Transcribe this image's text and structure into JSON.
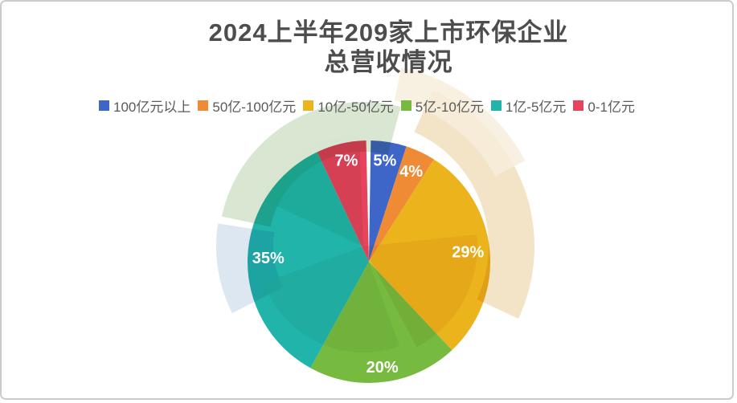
{
  "window": {
    "background": "#ffffff",
    "border_color": "#cccccc"
  },
  "title": {
    "line1": "2024上半年209家上市环保企业",
    "line2": "总营收情况",
    "color": "#4d4d4d"
  },
  "chart_data": {
    "type": "pie",
    "title": "2024上半年209家上市环保企业 总营收情况",
    "start_angle_deg": 0,
    "direction": "clockwise",
    "legend_position": "top",
    "legend_text_color": "#595959",
    "data_label_color": "#ffffff",
    "series": [
      {
        "label": "100亿元以上",
        "value_pct": 5,
        "data_label": "5%",
        "color": "#3E66C9"
      },
      {
        "label": "50亿-100亿元",
        "value_pct": 4,
        "data_label": "4%",
        "color": "#EF8B35"
      },
      {
        "label": "10亿-50亿元",
        "value_pct": 29,
        "data_label": "29%",
        "color": "#EBB31C"
      },
      {
        "label": "5亿-10亿元",
        "value_pct": 20,
        "data_label": "20%",
        "color": "#76BA3F"
      },
      {
        "label": "1亿-5亿元",
        "value_pct": 35,
        "data_label": "35%",
        "color": "#21B4AB"
      },
      {
        "label": "0-1亿元",
        "value_pct": 7,
        "data_label": "7%",
        "color": "#E8435C"
      }
    ]
  },
  "watermark": {
    "green": "#D7E5D0",
    "beige": "#F2E2C4",
    "beige_light": "#F7EDDB",
    "blue": "#D9E4EF",
    "shade": "#E4EADF"
  }
}
